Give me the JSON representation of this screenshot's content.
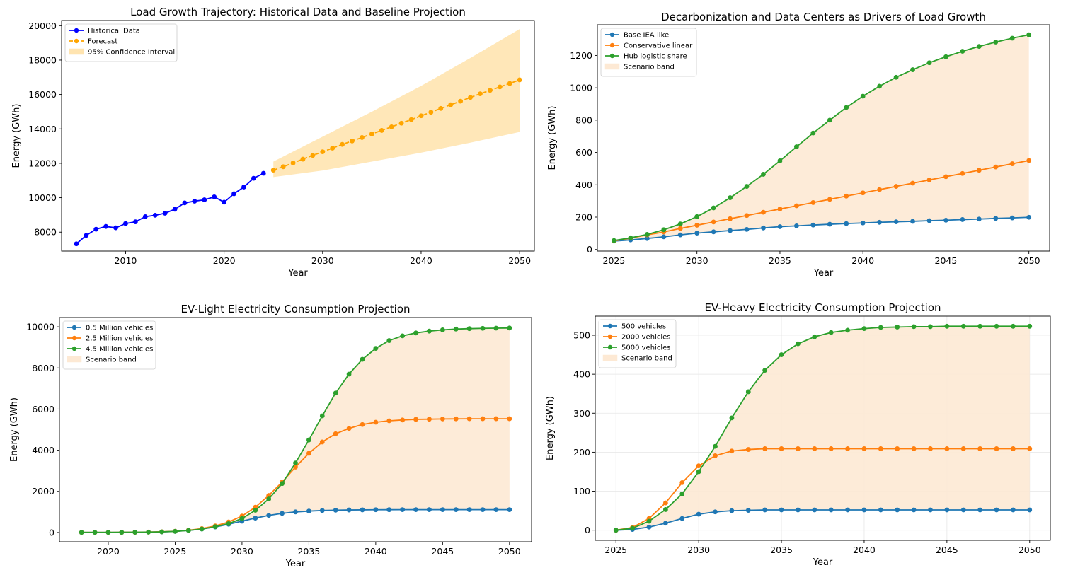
{
  "chart_data": [
    {
      "type": "line",
      "title": "Load Growth Trajectory: Historical Data and Baseline Projection",
      "xlabel": "Year",
      "ylabel": "Energy (GWh)",
      "xlim": [
        2003.5,
        2051.5
      ],
      "ylim": [
        6900,
        20300
      ],
      "xticks": [
        2010,
        2020,
        2030,
        2040,
        2050
      ],
      "yticks": [
        8000,
        10000,
        12000,
        14000,
        16000,
        18000,
        20000
      ],
      "grid": false,
      "legend_position": "top-left",
      "series": [
        {
          "name": "Historical Data",
          "color": "#0000ff",
          "style": "solid",
          "x": [
            2005,
            2006,
            2007,
            2008,
            2009,
            2010,
            2011,
            2012,
            2013,
            2014,
            2015,
            2016,
            2017,
            2018,
            2019,
            2020,
            2021,
            2022,
            2023,
            2024
          ],
          "y": [
            7320,
            7810,
            8170,
            8330,
            8250,
            8500,
            8600,
            8900,
            8980,
            9100,
            9330,
            9700,
            9800,
            9880,
            10050,
            9740,
            10230,
            10620,
            11130,
            11420
          ]
        },
        {
          "name": "Forecast",
          "color": "#ffa500",
          "style": "dashed",
          "x": [
            2025,
            2026,
            2027,
            2028,
            2029,
            2030,
            2031,
            2032,
            2033,
            2034,
            2035,
            2036,
            2037,
            2038,
            2039,
            2040,
            2041,
            2042,
            2043,
            2044,
            2045,
            2046,
            2047,
            2048,
            2049,
            2050
          ],
          "y": [
            11600,
            11800,
            12020,
            12240,
            12460,
            12670,
            12880,
            13100,
            13300,
            13500,
            13710,
            13910,
            14120,
            14330,
            14540,
            14760,
            14970,
            15190,
            15400,
            15610,
            15830,
            16040,
            16240,
            16440,
            16640,
            16850
          ]
        }
      ],
      "band": {
        "name": "95% Confidence Interval",
        "color": "#ffe4b0",
        "x": [
          2025,
          2030,
          2035,
          2040,
          2045,
          2050
        ],
        "lower": [
          11200,
          11580,
          12100,
          12620,
          13200,
          13820
        ],
        "upper": [
          12100,
          13550,
          15000,
          16500,
          18120,
          19800
        ]
      }
    },
    {
      "type": "line",
      "title": "Decarbonization and Data Centers as Drivers of Load Growth",
      "xlabel": "Year",
      "ylabel": "Energy (GWh)",
      "xlim": [
        2024,
        2051.25
      ],
      "ylim": [
        -10,
        1390
      ],
      "xticks": [
        2025,
        2030,
        2035,
        2040,
        2045,
        2050
      ],
      "yticks": [
        0,
        200,
        400,
        600,
        800,
        1000,
        1200
      ],
      "grid": false,
      "legend_position": "top-left",
      "series": [
        {
          "name": "Base IEA-like",
          "color": "#1f77b4",
          "x": [
            2025,
            2026,
            2027,
            2028,
            2029,
            2030,
            2031,
            2032,
            2033,
            2034,
            2035,
            2036,
            2037,
            2038,
            2039,
            2040,
            2041,
            2042,
            2043,
            2044,
            2045,
            2046,
            2047,
            2048,
            2049,
            2050
          ],
          "y": [
            52,
            59,
            68,
            78,
            90,
            101,
            109,
            117,
            124,
            133,
            141,
            146,
            151,
            156,
            160,
            164,
            168,
            171,
            174,
            178,
            181,
            185,
            188,
            192,
            195,
            199
          ]
        },
        {
          "name": "Conservative linear",
          "color": "#ff7f0e",
          "x": [
            2025,
            2026,
            2027,
            2028,
            2029,
            2030,
            2031,
            2032,
            2033,
            2034,
            2035,
            2036,
            2037,
            2038,
            2039,
            2040,
            2041,
            2042,
            2043,
            2044,
            2045,
            2046,
            2047,
            2048,
            2049,
            2050
          ],
          "y": [
            53,
            70,
            90,
            108,
            130,
            150,
            170,
            190,
            210,
            230,
            250,
            270,
            290,
            310,
            330,
            350,
            370,
            390,
            410,
            430,
            450,
            470,
            490,
            510,
            530,
            550
          ]
        },
        {
          "name": "Hub logistic share",
          "color": "#2ca02c",
          "x": [
            2025,
            2026,
            2027,
            2028,
            2029,
            2030,
            2031,
            2032,
            2033,
            2034,
            2035,
            2036,
            2037,
            2038,
            2039,
            2040,
            2041,
            2042,
            2043,
            2044,
            2045,
            2046,
            2047,
            2048,
            2049,
            2050
          ],
          "y": [
            55,
            72,
            93,
            122,
            158,
            203,
            257,
            320,
            390,
            465,
            548,
            635,
            720,
            800,
            878,
            948,
            1010,
            1065,
            1112,
            1155,
            1192,
            1226,
            1256,
            1283,
            1307,
            1328
          ]
        }
      ],
      "band": {
        "name": "Scenario band",
        "color": "#fde9d4",
        "lower_series": 0,
        "upper_series": 2
      }
    },
    {
      "type": "line",
      "title": "EV-Light Electricity Consumption Projection",
      "xlabel": "Year",
      "ylabel": "Energy (GWh)",
      "xlim": [
        2016.35,
        2051.65
      ],
      "ylim": [
        -450,
        10450
      ],
      "xticks": [
        2020,
        2025,
        2030,
        2035,
        2040,
        2045,
        2050
      ],
      "yticks": [
        0,
        2000,
        4000,
        6000,
        8000,
        10000
      ],
      "grid": false,
      "legend_position": "top-left",
      "series": [
        {
          "name": "0.5 Million vehicles",
          "color": "#1f77b4",
          "x": [
            2018,
            2019,
            2020,
            2021,
            2022,
            2023,
            2024,
            2025,
            2026,
            2027,
            2028,
            2029,
            2030,
            2031,
            2032,
            2033,
            2034,
            2035,
            2036,
            2037,
            2038,
            2039,
            2040,
            2041,
            2042,
            2043,
            2044,
            2045,
            2046,
            2047,
            2048,
            2049,
            2050
          ],
          "y": [
            5,
            5,
            5,
            8,
            12,
            18,
            30,
            55,
            100,
            170,
            270,
            400,
            550,
            700,
            830,
            930,
            1000,
            1040,
            1070,
            1085,
            1095,
            1100,
            1105,
            1108,
            1110,
            1110,
            1110,
            1110,
            1110,
            1110,
            1110,
            1110,
            1110
          ]
        },
        {
          "name": "2.5 Million vehicles",
          "color": "#ff7f0e",
          "x": [
            2018,
            2019,
            2020,
            2021,
            2022,
            2023,
            2024,
            2025,
            2026,
            2027,
            2028,
            2029,
            2030,
            2031,
            2032,
            2033,
            2034,
            2035,
            2036,
            2037,
            2038,
            2039,
            2040,
            2041,
            2042,
            2043,
            2044,
            2045,
            2046,
            2047,
            2048,
            2049,
            2050
          ],
          "y": [
            5,
            5,
            5,
            8,
            12,
            20,
            35,
            60,
            110,
            190,
            320,
            510,
            800,
            1230,
            1800,
            2450,
            3180,
            3850,
            4400,
            4800,
            5060,
            5250,
            5360,
            5430,
            5470,
            5500,
            5510,
            5520,
            5525,
            5528,
            5530,
            5530,
            5530
          ]
        },
        {
          "name": "4.5 Million vehicles",
          "color": "#2ca02c",
          "x": [
            2018,
            2019,
            2020,
            2021,
            2022,
            2023,
            2024,
            2025,
            2026,
            2027,
            2028,
            2029,
            2030,
            2031,
            2032,
            2033,
            2034,
            2035,
            2036,
            2037,
            2038,
            2039,
            2040,
            2041,
            2042,
            2043,
            2044,
            2045,
            2046,
            2047,
            2048,
            2049,
            2050
          ],
          "y": [
            5,
            5,
            5,
            8,
            12,
            18,
            32,
            55,
            100,
            170,
            280,
            430,
            680,
            1080,
            1630,
            2380,
            3380,
            4500,
            5670,
            6780,
            7700,
            8420,
            8950,
            9330,
            9560,
            9700,
            9790,
            9850,
            9890,
            9910,
            9925,
            9935,
            9940
          ]
        }
      ],
      "band": {
        "name": "Scenario band",
        "color": "#fde9d4",
        "lower_series": 0,
        "upper_series": 2
      }
    },
    {
      "type": "line",
      "title": "EV-Heavy Electricity Consumption Projection",
      "xlabel": "Year",
      "ylabel": "Energy (GWh)",
      "xlim": [
        2023.75,
        2051.25
      ],
      "ylim": [
        -26,
        549
      ],
      "xticks": [
        2025,
        2030,
        2035,
        2040,
        2045,
        2050
      ],
      "yticks": [
        0,
        100,
        200,
        300,
        400,
        500
      ],
      "grid": true,
      "legend_position": "top-left",
      "series": [
        {
          "name": "500 vehicles",
          "color": "#1f77b4",
          "x": [
            2025,
            2026,
            2027,
            2028,
            2029,
            2030,
            2031,
            2032,
            2033,
            2034,
            2035,
            2036,
            2037,
            2038,
            2039,
            2040,
            2041,
            2042,
            2043,
            2044,
            2045,
            2046,
            2047,
            2048,
            2049,
            2050
          ],
          "y": [
            0,
            2,
            8,
            18,
            30,
            41,
            47,
            50,
            51,
            52,
            52,
            52,
            52,
            52,
            52,
            52,
            52,
            52,
            52,
            52,
            52,
            52,
            52,
            52,
            52,
            52
          ]
        },
        {
          "name": "2000 vehicles",
          "color": "#ff7f0e",
          "x": [
            2025,
            2026,
            2027,
            2028,
            2029,
            2030,
            2031,
            2032,
            2033,
            2034,
            2035,
            2036,
            2037,
            2038,
            2039,
            2040,
            2041,
            2042,
            2043,
            2044,
            2045,
            2046,
            2047,
            2048,
            2049,
            2050
          ],
          "y": [
            0,
            7,
            30,
            70,
            122,
            165,
            191,
            203,
            207,
            209,
            209,
            209,
            209,
            209,
            209,
            209,
            209,
            209,
            209,
            209,
            209,
            209,
            209,
            209,
            209,
            209
          ]
        },
        {
          "name": "5000 vehicles",
          "color": "#2ca02c",
          "x": [
            2025,
            2026,
            2027,
            2028,
            2029,
            2030,
            2031,
            2032,
            2033,
            2034,
            2035,
            2036,
            2037,
            2038,
            2039,
            2040,
            2041,
            2042,
            2043,
            2044,
            2045,
            2046,
            2047,
            2048,
            2049,
            2050
          ],
          "y": [
            0,
            5,
            23,
            53,
            93,
            150,
            215,
            288,
            355,
            410,
            450,
            478,
            496,
            507,
            513,
            517,
            520,
            521,
            522,
            522,
            523,
            523,
            523,
            523,
            523,
            523
          ]
        }
      ],
      "band": {
        "name": "Scenario band",
        "color": "#fde9d4",
        "lower_series": 0,
        "upper_series": 2
      }
    }
  ]
}
